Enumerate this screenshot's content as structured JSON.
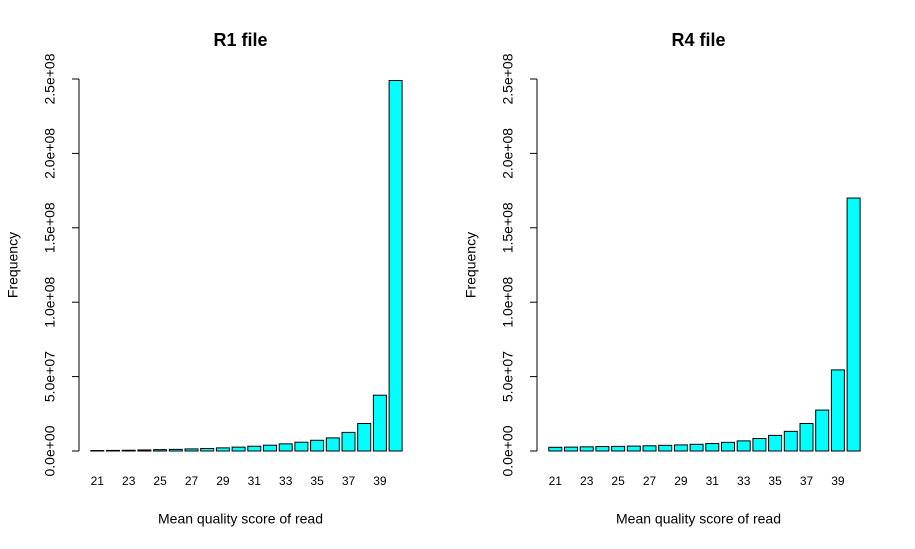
{
  "chart_data": [
    {
      "type": "bar",
      "title": "R1 file",
      "xlabel": "Mean quality score of read",
      "ylabel": "Frequency",
      "categories": [
        "21",
        null,
        "23",
        null,
        "25",
        null,
        "27",
        null,
        "29",
        null,
        "31",
        null,
        "33",
        null,
        "35",
        null,
        "37",
        null,
        "39",
        null
      ],
      "values": [
        300000,
        400000,
        500000,
        700000,
        900000,
        1100000,
        1400000,
        1700000,
        2100000,
        2600000,
        3200000,
        3900000,
        4800000,
        5900000,
        7200000,
        8800000,
        12500000,
        18500000,
        37500000,
        249000000
      ],
      "color": "#00ffff",
      "ylim": [
        0,
        250000000
      ],
      "yticks": [
        {
          "value": 0,
          "label": "0.0e+00"
        },
        {
          "value": 50000000,
          "label": "5.0e+07"
        },
        {
          "value": 100000000,
          "label": "1.0e+08"
        },
        {
          "value": 150000000,
          "label": "1.5e+08"
        },
        {
          "value": 200000000,
          "label": "2.0e+08"
        },
        {
          "value": 250000000,
          "label": "2.5e+08"
        }
      ]
    },
    {
      "type": "bar",
      "title": "R4 file",
      "xlabel": "Mean quality score of read",
      "ylabel": "Frequency",
      "categories": [
        "21",
        null,
        "23",
        null,
        "25",
        null,
        "27",
        null,
        "29",
        null,
        "31",
        null,
        "33",
        null,
        "35",
        null,
        "37",
        null,
        "39",
        null
      ],
      "values": [
        2500000,
        2600000,
        2800000,
        3000000,
        3100000,
        3300000,
        3500000,
        3800000,
        4100000,
        4500000,
        5000000,
        5800000,
        6800000,
        8400000,
        10500000,
        13200000,
        18500000,
        27500000,
        54500000,
        170000000
      ],
      "color": "#00ffff",
      "ylim": [
        0,
        250000000
      ],
      "yticks": [
        {
          "value": 0,
          "label": "0.0e+00"
        },
        {
          "value": 50000000,
          "label": "5.0e+07"
        },
        {
          "value": 100000000,
          "label": "1.0e+08"
        },
        {
          "value": 150000000,
          "label": "1.5e+08"
        },
        {
          "value": 200000000,
          "label": "2.0e+08"
        },
        {
          "value": 250000000,
          "label": "2.5e+08"
        }
      ]
    }
  ]
}
